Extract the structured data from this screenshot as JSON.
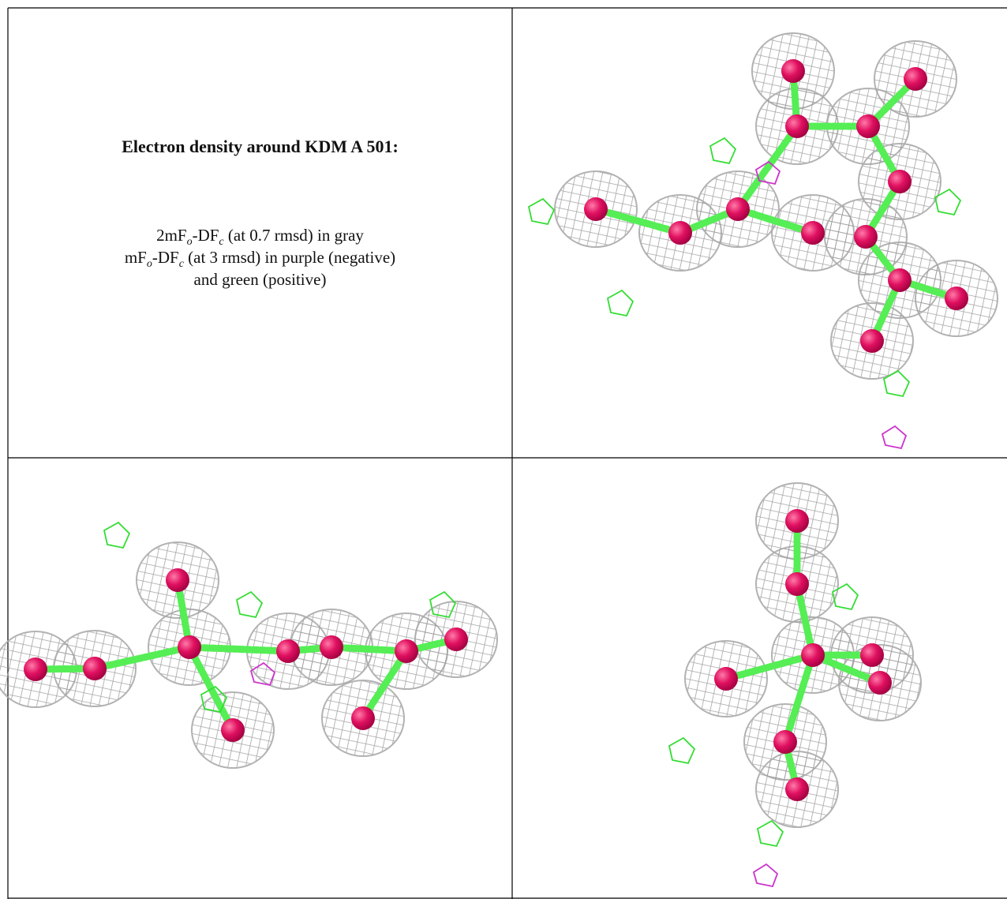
{
  "caption": {
    "title": "Electron density around KDM A 501:",
    "lines": [
      [
        "2mF",
        "o",
        "-DF",
        "c",
        " (at 0.7 rmsd) in gray"
      ],
      [
        "mF",
        "o",
        "-DF",
        "c",
        " (at 3 rmsd) in purple (negative)"
      ],
      [
        "and green (positive)"
      ]
    ]
  }
}
